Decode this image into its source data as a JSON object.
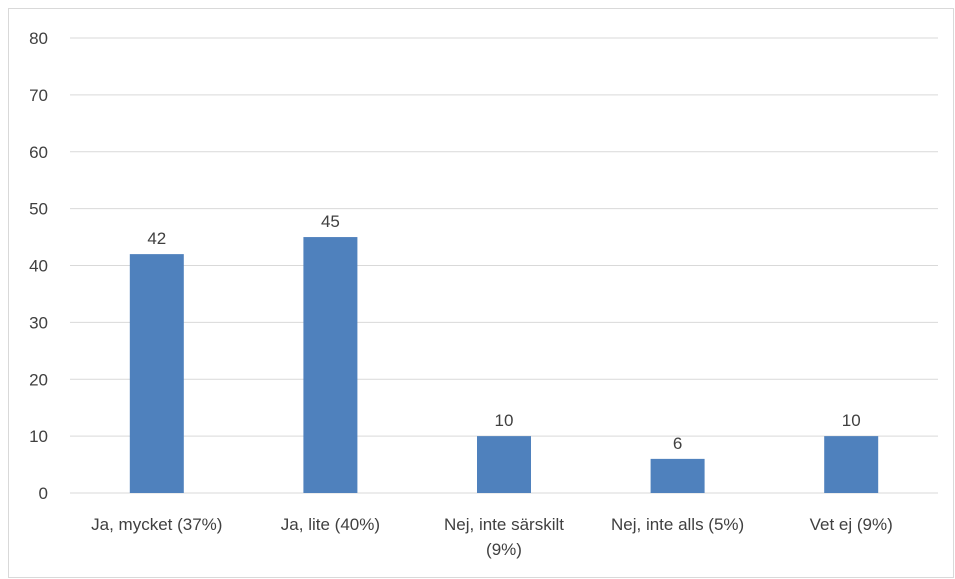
{
  "chart_data": {
    "type": "bar",
    "categories": [
      [
        "Ja, mycket (37%)"
      ],
      [
        "Ja, lite (40%)"
      ],
      [
        "Nej, inte särskilt",
        "(9%)"
      ],
      [
        "Nej, inte alls (5%)"
      ],
      [
        "Vet ej (9%)"
      ]
    ],
    "values": [
      42,
      45,
      10,
      6,
      10
    ],
    "ylim": [
      0,
      80
    ],
    "yticks": [
      0,
      10,
      20,
      30,
      40,
      50,
      60,
      70,
      80
    ],
    "grid": true,
    "bar_color": "#4f81bd",
    "grid_color": "#d9d9d9"
  }
}
